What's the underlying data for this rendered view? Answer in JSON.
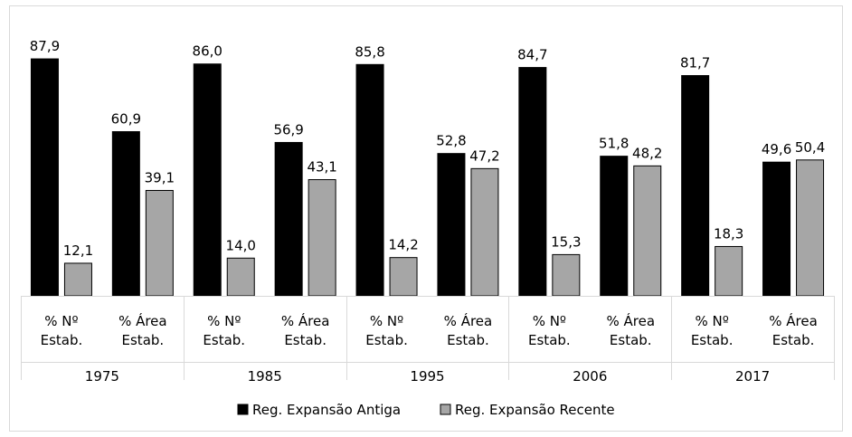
{
  "chart_data": {
    "type": "bar",
    "groups": [
      "1975",
      "1985",
      "1995",
      "2006",
      "2017"
    ],
    "subcategories": [
      "% Nº\nEstab.",
      "% Área\nEstab."
    ],
    "categories": [
      "% Nº Estab. 1975",
      "% Área Estab. 1975",
      "% Nº Estab. 1985",
      "% Área Estab. 1985",
      "% Nº Estab. 1995",
      "% Área Estab. 1995",
      "% Nº Estab. 2006",
      "% Área Estab. 2006",
      "% Nº Estab. 2017",
      "% Área Estab. 2017"
    ],
    "series": [
      {
        "name": "Reg. Expansão Antiga",
        "color": "#000000",
        "values": [
          87.9,
          60.9,
          86.0,
          56.9,
          85.8,
          52.8,
          84.7,
          51.8,
          81.7,
          49.6
        ]
      },
      {
        "name": "Reg. Expansão Recente",
        "color": "#a6a6a6",
        "values": [
          12.1,
          39.1,
          14.0,
          43.1,
          14.2,
          47.2,
          15.3,
          48.2,
          18.3,
          50.4
        ]
      }
    ],
    "value_labels": {
      "Reg. Expansão Antiga": [
        "87,9",
        "60,9",
        "86,0",
        "56,9",
        "85,8",
        "52,8",
        "84,7",
        "51,8",
        "81,7",
        "49,6"
      ],
      "Reg. Expansão Recente": [
        "12,1",
        "39,1",
        "14,0",
        "43,1",
        "14,2",
        "47,2",
        "15,3",
        "48,2",
        "18,3",
        "50,4"
      ]
    },
    "ylim": [
      0,
      100
    ],
    "grid": false,
    "legend_position": "bottom",
    "title": "",
    "xlabel": "",
    "ylabel": ""
  }
}
